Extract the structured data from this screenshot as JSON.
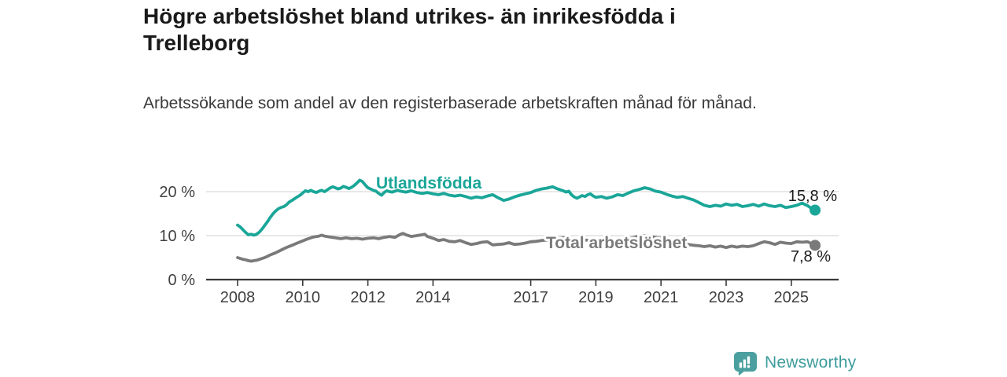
{
  "header": {
    "title": "Högre arbetslöshet bland utrikes- än inrikesfödda i Trelleborg",
    "subtitle": "Arbetssökande som andel av den registerbaserade arbetskraften månad för månad."
  },
  "branding": {
    "logo_text": "Newsworthy",
    "logo_color": "#4ba09f"
  },
  "chart_data": {
    "type": "line",
    "title": "Högre arbetslöshet bland utrikes- än inrikesfödda i Trelleborg",
    "xlabel": "",
    "ylabel": "",
    "grid": "horizontal",
    "legend_position": "inline-labels",
    "xlim": [
      2006.8,
      2026.4
    ],
    "ylim": [
      0,
      26
    ],
    "x_ticks": [
      {
        "value": 2008,
        "label": "2008"
      },
      {
        "value": 2010,
        "label": "2010"
      },
      {
        "value": 2012,
        "label": "2012"
      },
      {
        "value": 2014,
        "label": "2014"
      },
      {
        "value": 2017,
        "label": "2017"
      },
      {
        "value": 2019,
        "label": "2019"
      },
      {
        "value": 2021,
        "label": "2021"
      },
      {
        "value": 2023,
        "label": "2023"
      },
      {
        "value": 2025,
        "label": "2025"
      }
    ],
    "y_ticks": [
      {
        "value": 0,
        "label": "0 %"
      },
      {
        "value": 10,
        "label": "10 %"
      },
      {
        "value": 20,
        "label": "20 %"
      }
    ],
    "series": [
      {
        "name": "Utlandsfödda",
        "color": "#1aa698",
        "end_label": "15,8 %",
        "end_value": 15.8,
        "points": [
          [
            2008.0,
            12.4
          ],
          [
            2008.08,
            12.0
          ],
          [
            2008.17,
            11.3
          ],
          [
            2008.25,
            10.7
          ],
          [
            2008.33,
            10.2
          ],
          [
            2008.42,
            10.3
          ],
          [
            2008.5,
            10.1
          ],
          [
            2008.58,
            10.3
          ],
          [
            2008.67,
            10.8
          ],
          [
            2008.75,
            11.5
          ],
          [
            2008.83,
            12.3
          ],
          [
            2008.92,
            13.2
          ],
          [
            2009.0,
            14.1
          ],
          [
            2009.08,
            14.9
          ],
          [
            2009.17,
            15.6
          ],
          [
            2009.25,
            16.1
          ],
          [
            2009.33,
            16.4
          ],
          [
            2009.42,
            16.6
          ],
          [
            2009.5,
            17.0
          ],
          [
            2009.58,
            17.6
          ],
          [
            2009.67,
            18.0
          ],
          [
            2009.75,
            18.4
          ],
          [
            2009.83,
            18.8
          ],
          [
            2009.92,
            19.2
          ],
          [
            2010.0,
            19.7
          ],
          [
            2010.08,
            20.2
          ],
          [
            2010.17,
            20.0
          ],
          [
            2010.25,
            20.3
          ],
          [
            2010.33,
            20.0
          ],
          [
            2010.42,
            19.8
          ],
          [
            2010.5,
            20.1
          ],
          [
            2010.58,
            20.3
          ],
          [
            2010.67,
            20.0
          ],
          [
            2010.75,
            20.4
          ],
          [
            2010.83,
            20.8
          ],
          [
            2010.92,
            21.1
          ],
          [
            2011.0,
            20.9
          ],
          [
            2011.08,
            20.6
          ],
          [
            2011.17,
            20.8
          ],
          [
            2011.25,
            21.2
          ],
          [
            2011.33,
            21.0
          ],
          [
            2011.42,
            20.7
          ],
          [
            2011.5,
            21.0
          ],
          [
            2011.58,
            21.4
          ],
          [
            2011.67,
            22.0
          ],
          [
            2011.75,
            22.6
          ],
          [
            2011.83,
            22.3
          ],
          [
            2011.92,
            21.5
          ],
          [
            2012.0,
            20.9
          ],
          [
            2012.08,
            20.6
          ],
          [
            2012.17,
            20.3
          ],
          [
            2012.25,
            20.1
          ],
          [
            2012.33,
            19.6
          ],
          [
            2012.42,
            19.2
          ],
          [
            2012.5,
            19.8
          ],
          [
            2012.58,
            20.2
          ],
          [
            2012.67,
            20.0
          ],
          [
            2012.75,
            19.9
          ],
          [
            2012.83,
            20.1
          ],
          [
            2012.92,
            20.3
          ],
          [
            2013.0,
            20.1
          ],
          [
            2013.17,
            19.9
          ],
          [
            2013.33,
            20.2
          ],
          [
            2013.5,
            19.8
          ],
          [
            2013.67,
            19.6
          ],
          [
            2013.83,
            19.8
          ],
          [
            2014.0,
            19.5
          ],
          [
            2014.17,
            19.3
          ],
          [
            2014.33,
            19.6
          ],
          [
            2014.5,
            19.2
          ],
          [
            2014.67,
            19.0
          ],
          [
            2014.83,
            19.2
          ],
          [
            2015.0,
            18.9
          ],
          [
            2015.17,
            18.5
          ],
          [
            2015.33,
            18.8
          ],
          [
            2015.5,
            18.6
          ],
          [
            2015.67,
            19.0
          ],
          [
            2015.83,
            19.3
          ],
          [
            2016.0,
            18.6
          ],
          [
            2016.17,
            18.0
          ],
          [
            2016.33,
            18.3
          ],
          [
            2016.5,
            18.8
          ],
          [
            2016.67,
            19.2
          ],
          [
            2016.83,
            19.5
          ],
          [
            2017.0,
            19.8
          ],
          [
            2017.17,
            20.3
          ],
          [
            2017.33,
            20.6
          ],
          [
            2017.5,
            20.8
          ],
          [
            2017.67,
            21.1
          ],
          [
            2017.83,
            20.6
          ],
          [
            2018.0,
            20.2
          ],
          [
            2018.08,
            19.9
          ],
          [
            2018.17,
            20.1
          ],
          [
            2018.25,
            19.3
          ],
          [
            2018.33,
            18.8
          ],
          [
            2018.42,
            18.5
          ],
          [
            2018.5,
            18.8
          ],
          [
            2018.58,
            19.1
          ],
          [
            2018.67,
            18.9
          ],
          [
            2018.75,
            19.3
          ],
          [
            2018.83,
            19.5
          ],
          [
            2018.92,
            19.0
          ],
          [
            2019.0,
            18.7
          ],
          [
            2019.17,
            18.9
          ],
          [
            2019.33,
            18.5
          ],
          [
            2019.5,
            18.8
          ],
          [
            2019.67,
            19.3
          ],
          [
            2019.83,
            19.1
          ],
          [
            2020.0,
            19.7
          ],
          [
            2020.17,
            20.2
          ],
          [
            2020.33,
            20.5
          ],
          [
            2020.5,
            20.9
          ],
          [
            2020.67,
            20.6
          ],
          [
            2020.83,
            20.1
          ],
          [
            2021.0,
            19.9
          ],
          [
            2021.17,
            19.4
          ],
          [
            2021.33,
            19.0
          ],
          [
            2021.5,
            18.7
          ],
          [
            2021.67,
            18.9
          ],
          [
            2021.83,
            18.5
          ],
          [
            2022.0,
            18.1
          ],
          [
            2022.17,
            17.5
          ],
          [
            2022.33,
            16.9
          ],
          [
            2022.5,
            16.6
          ],
          [
            2022.67,
            16.9
          ],
          [
            2022.83,
            16.7
          ],
          [
            2023.0,
            17.2
          ],
          [
            2023.17,
            16.9
          ],
          [
            2023.33,
            17.1
          ],
          [
            2023.5,
            16.6
          ],
          [
            2023.67,
            16.8
          ],
          [
            2023.83,
            17.1
          ],
          [
            2024.0,
            16.7
          ],
          [
            2024.17,
            17.2
          ],
          [
            2024.33,
            16.8
          ],
          [
            2024.5,
            16.6
          ],
          [
            2024.67,
            16.9
          ],
          [
            2024.83,
            16.4
          ],
          [
            2025.0,
            16.6
          ],
          [
            2025.17,
            16.9
          ],
          [
            2025.33,
            17.4
          ],
          [
            2025.5,
            16.8
          ],
          [
            2025.62,
            16.2
          ],
          [
            2025.73,
            15.8
          ]
        ]
      },
      {
        "name": "Total arbetslöshet",
        "color": "#7a7a7a",
        "end_label": "7,8 %",
        "end_value": 7.8,
        "points": [
          [
            2008.0,
            5.0
          ],
          [
            2008.08,
            4.8
          ],
          [
            2008.17,
            4.6
          ],
          [
            2008.25,
            4.5
          ],
          [
            2008.33,
            4.3
          ],
          [
            2008.42,
            4.2
          ],
          [
            2008.5,
            4.3
          ],
          [
            2008.58,
            4.4
          ],
          [
            2008.67,
            4.6
          ],
          [
            2008.75,
            4.8
          ],
          [
            2008.83,
            5.0
          ],
          [
            2008.92,
            5.3
          ],
          [
            2009.0,
            5.6
          ],
          [
            2009.17,
            6.1
          ],
          [
            2009.33,
            6.7
          ],
          [
            2009.5,
            7.3
          ],
          [
            2009.67,
            7.8
          ],
          [
            2009.83,
            8.3
          ],
          [
            2010.0,
            8.8
          ],
          [
            2010.17,
            9.3
          ],
          [
            2010.33,
            9.7
          ],
          [
            2010.5,
            9.9
          ],
          [
            2010.58,
            10.1
          ],
          [
            2010.67,
            9.9
          ],
          [
            2010.83,
            9.7
          ],
          [
            2011.0,
            9.5
          ],
          [
            2011.17,
            9.3
          ],
          [
            2011.33,
            9.5
          ],
          [
            2011.5,
            9.3
          ],
          [
            2011.67,
            9.4
          ],
          [
            2011.83,
            9.2
          ],
          [
            2012.0,
            9.4
          ],
          [
            2012.17,
            9.5
          ],
          [
            2012.33,
            9.3
          ],
          [
            2012.5,
            9.6
          ],
          [
            2012.67,
            9.8
          ],
          [
            2012.83,
            9.6
          ],
          [
            2013.0,
            10.3
          ],
          [
            2013.08,
            10.5
          ],
          [
            2013.17,
            10.2
          ],
          [
            2013.33,
            9.8
          ],
          [
            2013.5,
            10.0
          ],
          [
            2013.67,
            10.2
          ],
          [
            2013.75,
            10.3
          ],
          [
            2013.83,
            9.8
          ],
          [
            2014.0,
            9.4
          ],
          [
            2014.17,
            8.9
          ],
          [
            2014.33,
            9.1
          ],
          [
            2014.5,
            8.7
          ],
          [
            2014.67,
            8.6
          ],
          [
            2014.83,
            8.9
          ],
          [
            2015.0,
            8.4
          ],
          [
            2015.17,
            8.0
          ],
          [
            2015.33,
            8.2
          ],
          [
            2015.5,
            8.5
          ],
          [
            2015.67,
            8.6
          ],
          [
            2015.83,
            7.9
          ],
          [
            2016.0,
            8.0
          ],
          [
            2016.17,
            8.1
          ],
          [
            2016.33,
            8.4
          ],
          [
            2016.5,
            8.0
          ],
          [
            2016.67,
            8.1
          ],
          [
            2016.83,
            8.3
          ],
          [
            2017.0,
            8.6
          ],
          [
            2017.17,
            8.7
          ],
          [
            2017.33,
            8.9
          ],
          [
            2017.5,
            9.0
          ],
          [
            2017.67,
            9.2
          ],
          [
            2017.83,
            9.4
          ],
          [
            2018.0,
            9.5
          ],
          [
            2018.17,
            9.3
          ],
          [
            2018.33,
            9.1
          ],
          [
            2018.5,
            9.2
          ],
          [
            2018.67,
            9.0
          ],
          [
            2018.83,
            8.9
          ],
          [
            2019.0,
            8.8
          ],
          [
            2019.17,
            8.7
          ],
          [
            2019.33,
            8.6
          ],
          [
            2019.5,
            8.7
          ],
          [
            2019.67,
            8.8
          ],
          [
            2019.83,
            8.9
          ],
          [
            2020.0,
            9.2
          ],
          [
            2020.17,
            9.6
          ],
          [
            2020.33,
            9.9
          ],
          [
            2020.5,
            10.0
          ],
          [
            2020.67,
            9.8
          ],
          [
            2020.83,
            9.6
          ],
          [
            2021.0,
            9.4
          ],
          [
            2021.17,
            9.1
          ],
          [
            2021.33,
            8.8
          ],
          [
            2021.5,
            8.6
          ],
          [
            2021.67,
            8.3
          ],
          [
            2021.83,
            8.0
          ],
          [
            2022.0,
            7.8
          ],
          [
            2022.17,
            7.7
          ],
          [
            2022.33,
            7.5
          ],
          [
            2022.5,
            7.7
          ],
          [
            2022.67,
            7.4
          ],
          [
            2022.83,
            7.6
          ],
          [
            2023.0,
            7.3
          ],
          [
            2023.17,
            7.6
          ],
          [
            2023.33,
            7.4
          ],
          [
            2023.5,
            7.6
          ],
          [
            2023.67,
            7.5
          ],
          [
            2023.83,
            7.7
          ],
          [
            2024.0,
            8.2
          ],
          [
            2024.17,
            8.6
          ],
          [
            2024.33,
            8.4
          ],
          [
            2024.5,
            8.0
          ],
          [
            2024.67,
            8.5
          ],
          [
            2024.83,
            8.3
          ],
          [
            2025.0,
            8.2
          ],
          [
            2025.17,
            8.6
          ],
          [
            2025.33,
            8.5
          ],
          [
            2025.5,
            8.6
          ],
          [
            2025.62,
            8.2
          ],
          [
            2025.73,
            7.8
          ]
        ]
      }
    ]
  }
}
